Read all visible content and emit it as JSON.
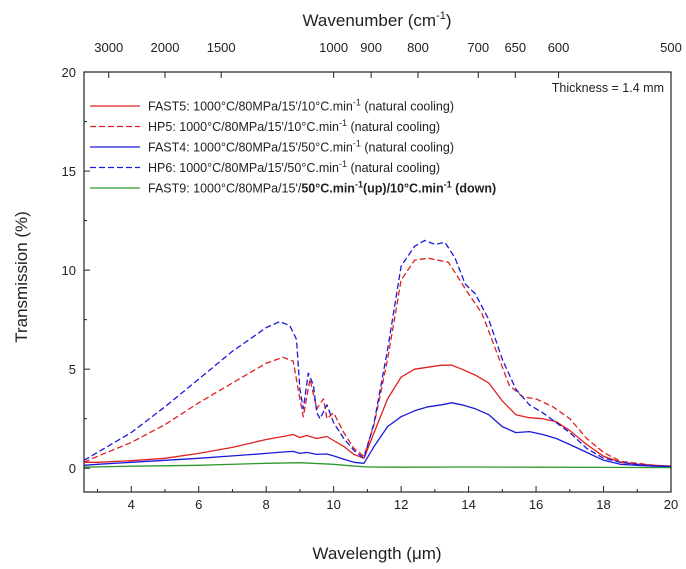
{
  "chart_data": {
    "type": "line",
    "xlabel": "Wavelength (μm)",
    "ylabel": "Transmission (%)",
    "x2label": "Wavenumber (cm",
    "x2label_sup": "-1",
    "x2label_end": ")",
    "xlim": [
      2.6,
      20
    ],
    "ylim": [
      -1.2,
      20
    ],
    "xticks": [
      4,
      6,
      8,
      10,
      12,
      14,
      16,
      18,
      20
    ],
    "yticks": [
      0,
      5,
      10,
      15,
      20
    ],
    "x2ticks": [
      3000,
      2000,
      1500,
      1000,
      900,
      800,
      700,
      650,
      600,
      500
    ],
    "annotation": "Thickness = 1.4 mm",
    "legend_position": "top-left",
    "series": [
      {
        "legend_parts": [
          {
            "text": "FAST5: 1000°C/80MPa/15'/10°C.min",
            "bold": false
          },
          {
            "text": "-1",
            "bold": false,
            "sup": true
          },
          {
            "text": " (natural cooling)",
            "bold": false
          }
        ],
        "color": "#e02020",
        "dash": "solid",
        "x": [
          2.6,
          3,
          4,
          5,
          6,
          7,
          8,
          8.5,
          8.8,
          9.0,
          9.2,
          9.5,
          9.8,
          10.0,
          10.3,
          10.6,
          10.9,
          11.2,
          11.6,
          12.0,
          12.4,
          12.8,
          13.2,
          13.5,
          13.8,
          14.2,
          14.6,
          15.0,
          15.4,
          15.8,
          16.2,
          16.6,
          17.0,
          17.5,
          18.0,
          18.5,
          19.0,
          19.5,
          20.0
        ],
        "y": [
          0.3,
          0.3,
          0.38,
          0.5,
          0.75,
          1.05,
          1.45,
          1.6,
          1.7,
          1.55,
          1.65,
          1.5,
          1.6,
          1.4,
          1.1,
          0.7,
          0.5,
          1.8,
          3.5,
          4.6,
          5.0,
          5.1,
          5.2,
          5.2,
          5.0,
          4.7,
          4.3,
          3.4,
          2.7,
          2.55,
          2.5,
          2.35,
          1.9,
          1.2,
          0.6,
          0.3,
          0.2,
          0.15,
          0.1
        ]
      },
      {
        "legend_parts": [
          {
            "text": "HP5: 1000°C/80MPa/15'/10°C.min",
            "bold": false
          },
          {
            "text": "-1",
            "bold": false,
            "sup": true
          },
          {
            "text": " (natural cooling)",
            "bold": false
          }
        ],
        "color": "#e02020",
        "dash": "dashed",
        "x": [
          2.6,
          3,
          4,
          5,
          6,
          7,
          7.5,
          8,
          8.5,
          8.8,
          9.0,
          9.1,
          9.3,
          9.5,
          9.7,
          9.8,
          10.0,
          10.3,
          10.6,
          10.9,
          11.2,
          11.6,
          12.0,
          12.4,
          12.8,
          13.1,
          13.4,
          13.7,
          14.0,
          14.4,
          14.8,
          15.2,
          15.6,
          16.0,
          16.5,
          17.0,
          17.5,
          18.0,
          18.5,
          19.0,
          19.5,
          20.0
        ],
        "y": [
          0.3,
          0.6,
          1.3,
          2.2,
          3.3,
          4.3,
          4.8,
          5.3,
          5.6,
          5.4,
          3.5,
          2.6,
          4.5,
          3.0,
          3.5,
          2.5,
          2.8,
          1.8,
          1.0,
          0.6,
          2.2,
          5.5,
          9.5,
          10.5,
          10.6,
          10.5,
          10.4,
          9.6,
          8.8,
          7.8,
          6.0,
          4.2,
          3.6,
          3.5,
          3.1,
          2.5,
          1.5,
          0.8,
          0.35,
          0.25,
          0.15,
          0.1
        ]
      },
      {
        "legend_parts": [
          {
            "text": "FAST4: 1000°C/80MPa/15'/50°C.min",
            "bold": false
          },
          {
            "text": "-1",
            "bold": false,
            "sup": true
          },
          {
            "text": " (natural cooling)",
            "bold": false
          }
        ],
        "color": "#1a1adc",
        "dash": "solid",
        "x": [
          2.6,
          3,
          4,
          5,
          6,
          7,
          8,
          8.5,
          8.8,
          9.0,
          9.2,
          9.5,
          9.8,
          10.0,
          10.3,
          10.6,
          10.9,
          11.2,
          11.6,
          12.0,
          12.4,
          12.8,
          13.2,
          13.5,
          13.8,
          14.2,
          14.6,
          15.0,
          15.4,
          15.8,
          16.2,
          16.6,
          17.0,
          17.5,
          18.0,
          18.5,
          19.0,
          19.5,
          20.0
        ],
        "y": [
          0.15,
          0.2,
          0.3,
          0.4,
          0.5,
          0.62,
          0.75,
          0.82,
          0.85,
          0.75,
          0.8,
          0.7,
          0.72,
          0.62,
          0.45,
          0.3,
          0.25,
          1.1,
          2.1,
          2.6,
          2.9,
          3.1,
          3.2,
          3.3,
          3.2,
          3.0,
          2.7,
          2.1,
          1.8,
          1.85,
          1.7,
          1.5,
          1.2,
          0.8,
          0.4,
          0.2,
          0.15,
          0.1,
          0.08
        ]
      },
      {
        "legend_parts": [
          {
            "text": "HP6: 1000°C/80MPa/15'/50°C.min",
            "bold": false
          },
          {
            "text": "-1",
            "bold": false,
            "sup": true
          },
          {
            "text": " (natural cooling)",
            "bold": false
          }
        ],
        "color": "#1a1adc",
        "dash": "dashed",
        "x": [
          2.6,
          3,
          4,
          5,
          6,
          7,
          7.5,
          8,
          8.4,
          8.7,
          8.9,
          9.0,
          9.1,
          9.25,
          9.4,
          9.5,
          9.6,
          9.8,
          10.0,
          10.3,
          10.6,
          10.9,
          11.2,
          11.6,
          12.0,
          12.4,
          12.7,
          13.0,
          13.3,
          13.6,
          13.9,
          14.2,
          14.6,
          15.0,
          15.4,
          15.8,
          16.2,
          16.6,
          17.0,
          17.5,
          18.0,
          18.5,
          19.0,
          19.5,
          20.0
        ],
        "y": [
          0.4,
          0.8,
          1.8,
          3.1,
          4.5,
          5.9,
          6.5,
          7.1,
          7.4,
          7.2,
          6.5,
          4.0,
          3.0,
          4.8,
          4.2,
          2.8,
          2.5,
          3.2,
          2.3,
          1.5,
          0.9,
          0.5,
          2.3,
          6.0,
          10.2,
          11.2,
          11.5,
          11.3,
          11.4,
          10.6,
          9.3,
          8.8,
          7.5,
          5.5,
          4.0,
          3.2,
          2.8,
          2.3,
          1.8,
          1.0,
          0.5,
          0.3,
          0.2,
          0.12,
          0.1
        ]
      },
      {
        "legend_parts": [
          {
            "text": "FAST9: 1000°C/80MPa/15'/",
            "bold": false
          },
          {
            "text": "50°C.min",
            "bold": true
          },
          {
            "text": "-1",
            "bold": true,
            "sup": true
          },
          {
            "text": "(up)/10°C.min",
            "bold": true
          },
          {
            "text": "-1",
            "bold": true,
            "sup": true
          },
          {
            "text": " (down)",
            "bold": true
          }
        ],
        "color": "#2e9a2e",
        "dash": "solid",
        "x": [
          2.6,
          4,
          6,
          8,
          9,
          10,
          10.5,
          11,
          12,
          14,
          16,
          18,
          20
        ],
        "y": [
          0.05,
          0.1,
          0.15,
          0.25,
          0.28,
          0.2,
          0.12,
          0.06,
          0.05,
          0.06,
          0.05,
          0.04,
          0.03
        ]
      }
    ]
  }
}
